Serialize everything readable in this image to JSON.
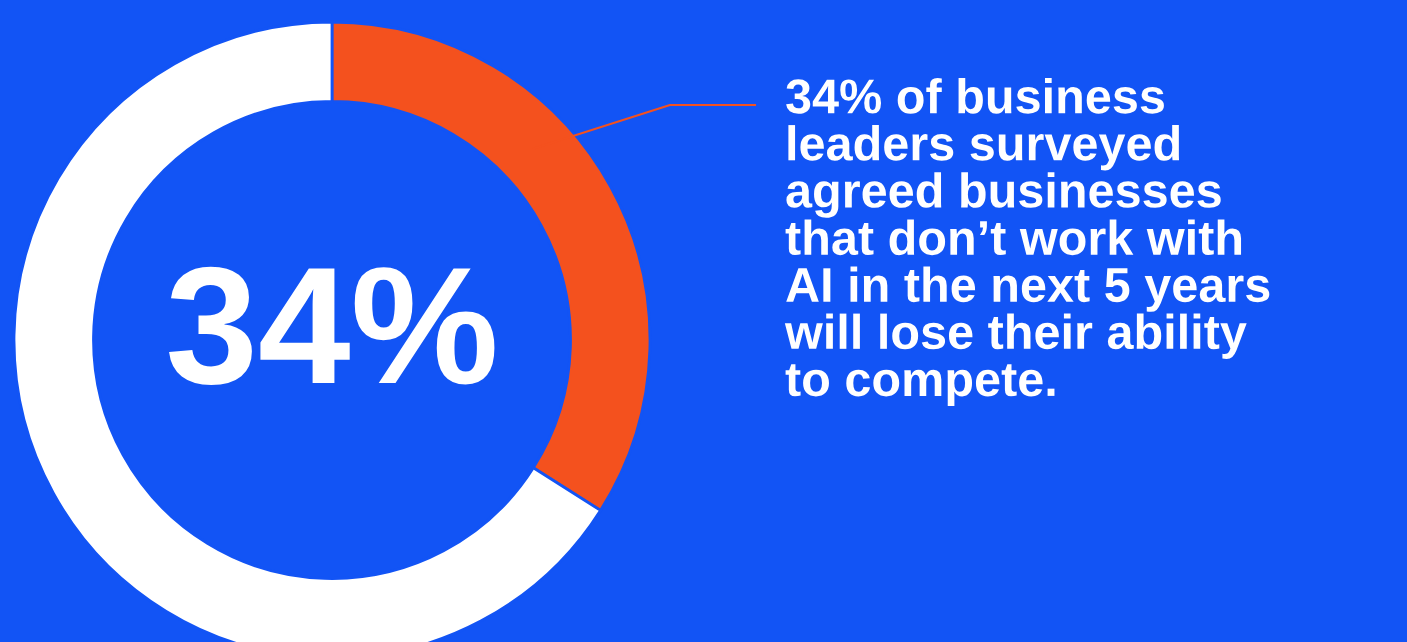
{
  "chart_data": {
    "type": "donut",
    "categories": [
      null,
      null
    ],
    "values": [
      34,
      66
    ],
    "colors": [
      "#f4511e",
      "#ffffff"
    ],
    "annotations": [
      "34%",
      "34% of business\nleaders surveyed\nagreed businesses\nthat don’t work with\nAI in the next 5 years\nwill lose their ability\nto compete."
    ],
    "legend": false
  }
}
